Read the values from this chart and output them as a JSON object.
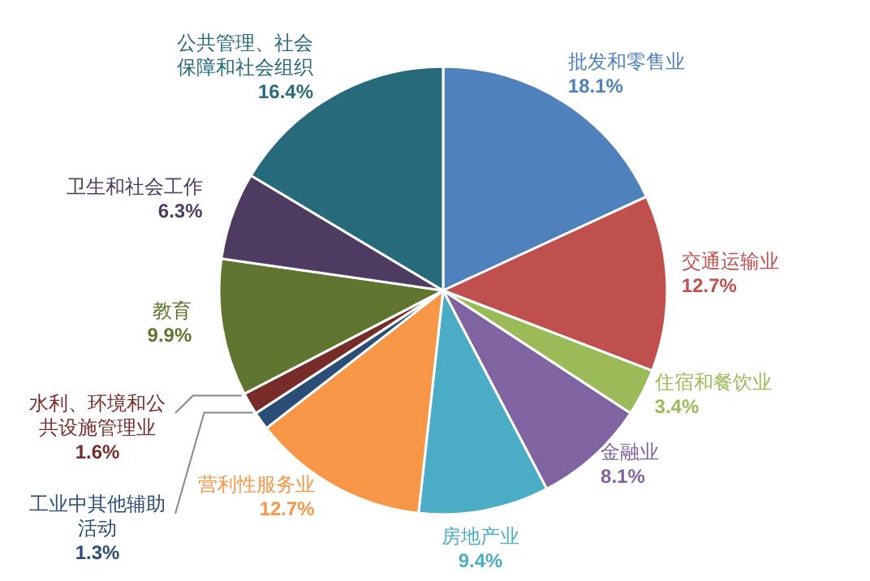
{
  "chart_data": {
    "type": "pie",
    "categories": [
      "批发和零售业",
      "交通运输业",
      "住宿和餐饮业",
      "金融业",
      "房地产业",
      "营利性服务业",
      "工业中其他辅助活动",
      "水利、环境和公共设施管理业",
      "教育",
      "卫生和社会工作",
      "公共管理、社会保障和社会组织"
    ],
    "values": [
      18.1,
      12.7,
      3.4,
      8.1,
      9.4,
      12.7,
      1.3,
      1.6,
      9.9,
      6.3,
      16.4
    ],
    "value_labels": [
      "18.1%",
      "12.7%",
      "3.4%",
      "8.1%",
      "9.4%",
      "12.7%",
      "1.3%",
      "1.6%",
      "9.9%",
      "6.3%",
      "16.4%"
    ],
    "colors": [
      "#4f81bd",
      "#c0504d",
      "#9bbb59",
      "#8064a2",
      "#4bacc6",
      "#f79646",
      "#2c4d75",
      "#772c2a",
      "#5f7530",
      "#4d3b62",
      "#276a7c"
    ]
  }
}
